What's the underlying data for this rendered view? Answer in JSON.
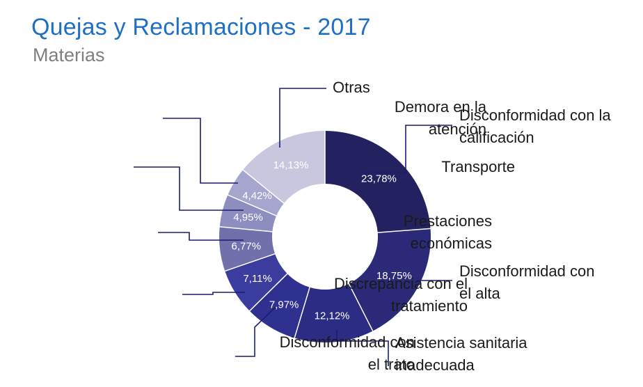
{
  "title": "Quejas y Reclamaciones - 2017",
  "subtitle": "Materias",
  "chart_data": {
    "type": "pie",
    "style": "donut",
    "title": "Quejas y Reclamaciones - 2017",
    "subtitle": "Materias",
    "slices": [
      {
        "label": "Disconformidad con la calificación",
        "label_lines": [
          "Disconformidad con la",
          "calificación"
        ],
        "value": 23.78,
        "value_label": "23,78%",
        "color": "#23215f"
      },
      {
        "label": "Disconformidad con el alta",
        "label_lines": [
          "Disconformidad con",
          "el alta"
        ],
        "value": 18.75,
        "value_label": "18,75%",
        "color": "#2a2a78"
      },
      {
        "label": "Asistencia sanitaria inadecuada",
        "label_lines": [
          "Asistencia sanitaria",
          "inadecuada"
        ],
        "value": 12.12,
        "value_label": "12,12%",
        "color": "#2b2c84"
      },
      {
        "label": "Disconformidad con el trato",
        "label_lines": [
          "Disconformidad con",
          "el trato"
        ],
        "value": 7.97,
        "value_label": "7,97%",
        "color": "#2f3190"
      },
      {
        "label": "Discrepancia con el tratamiento",
        "label_lines": [
          "Discrepancia con el",
          "tratamiento"
        ],
        "value": 7.11,
        "value_label": "7,11%",
        "color": "#3a3c9e"
      },
      {
        "label": "Prestaciones económicas",
        "label_lines": [
          "Prestaciones",
          "económicas"
        ],
        "value": 6.77,
        "value_label": "6,77%",
        "color": "#7170ad"
      },
      {
        "label": "Transporte",
        "label_lines": [
          "Transporte"
        ],
        "value": 4.95,
        "value_label": "4,95%",
        "color": "#8e8dbf"
      },
      {
        "label": "Demora en la atención",
        "label_lines": [
          "Demora en la",
          "atención"
        ],
        "value": 4.42,
        "value_label": "4,42%",
        "color": "#a6a5cd"
      },
      {
        "label": "Otras",
        "label_lines": [
          "Otras"
        ],
        "value": 14.13,
        "value_label": "14,13%",
        "color": "#c8c7df"
      }
    ]
  },
  "colors": {
    "title": "#1f6fc4",
    "subtitle": "#7f7f7f",
    "leader": "#1a1d6e",
    "value_text": "#ffffff"
  }
}
